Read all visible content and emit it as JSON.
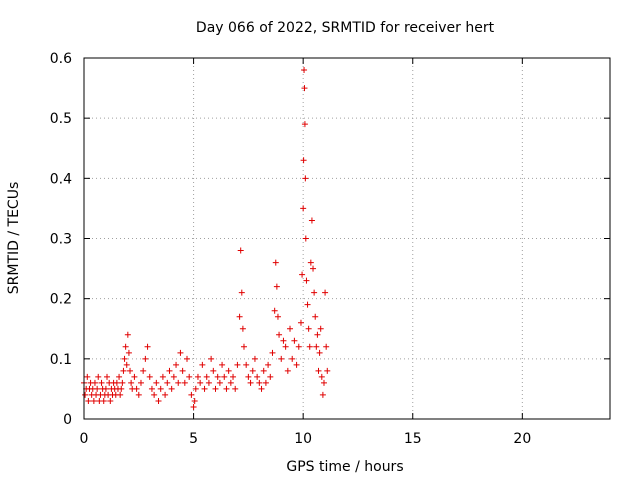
{
  "chart_data": {
    "type": "scatter",
    "title": "Day 066 of 2022, SRMTID for receiver hert",
    "xlabel": "GPS time / hours",
    "ylabel": "SRMTID / TECUs",
    "xlim": [
      0,
      24
    ],
    "ylim": [
      0,
      0.6
    ],
    "x_ticks": [
      0,
      5,
      10,
      15,
      20
    ],
    "y_ticks": [
      0,
      0.1,
      0.2,
      0.3,
      0.4,
      0.5,
      0.6
    ],
    "x_tick_labels": [
      "0",
      "5",
      "10",
      "15",
      "20"
    ],
    "y_tick_labels": [
      "0",
      "0.1",
      "0.2",
      "0.3",
      "0.4",
      "0.5",
      "0.6"
    ],
    "grid": true,
    "marker": "+",
    "marker_color": "#e00000",
    "series": [
      {
        "name": "SRMTID",
        "points": [
          [
            0.0,
            0.06
          ],
          [
            0.05,
            0.04
          ],
          [
            0.1,
            0.05
          ],
          [
            0.15,
            0.07
          ],
          [
            0.2,
            0.03
          ],
          [
            0.25,
            0.05
          ],
          [
            0.3,
            0.06
          ],
          [
            0.35,
            0.04
          ],
          [
            0.4,
            0.05
          ],
          [
            0.45,
            0.03
          ],
          [
            0.5,
            0.06
          ],
          [
            0.55,
            0.04
          ],
          [
            0.6,
            0.05
          ],
          [
            0.65,
            0.07
          ],
          [
            0.7,
            0.03
          ],
          [
            0.75,
            0.04
          ],
          [
            0.8,
            0.06
          ],
          [
            0.85,
            0.05
          ],
          [
            0.9,
            0.03
          ],
          [
            0.95,
            0.04
          ],
          [
            1.0,
            0.05
          ],
          [
            1.05,
            0.07
          ],
          [
            1.1,
            0.04
          ],
          [
            1.15,
            0.06
          ],
          [
            1.2,
            0.03
          ],
          [
            1.25,
            0.05
          ],
          [
            1.3,
            0.04
          ],
          [
            1.35,
            0.06
          ],
          [
            1.4,
            0.05
          ],
          [
            1.45,
            0.04
          ],
          [
            1.5,
            0.06
          ],
          [
            1.55,
            0.05
          ],
          [
            1.6,
            0.07
          ],
          [
            1.65,
            0.04
          ],
          [
            1.7,
            0.05
          ],
          [
            1.75,
            0.06
          ],
          [
            1.8,
            0.08
          ],
          [
            1.85,
            0.1
          ],
          [
            1.9,
            0.12
          ],
          [
            1.95,
            0.09
          ],
          [
            2.0,
            0.14
          ],
          [
            2.05,
            0.11
          ],
          [
            2.1,
            0.08
          ],
          [
            2.15,
            0.06
          ],
          [
            2.2,
            0.05
          ],
          [
            2.3,
            0.07
          ],
          [
            2.4,
            0.05
          ],
          [
            2.5,
            0.04
          ],
          [
            2.6,
            0.06
          ],
          [
            2.7,
            0.08
          ],
          [
            2.8,
            0.1
          ],
          [
            2.9,
            0.12
          ],
          [
            3.0,
            0.07
          ],
          [
            3.1,
            0.05
          ],
          [
            3.2,
            0.04
          ],
          [
            3.3,
            0.06
          ],
          [
            3.4,
            0.03
          ],
          [
            3.5,
            0.05
          ],
          [
            3.6,
            0.07
          ],
          [
            3.7,
            0.04
          ],
          [
            3.8,
            0.06
          ],
          [
            3.9,
            0.08
          ],
          [
            4.0,
            0.05
          ],
          [
            4.1,
            0.07
          ],
          [
            4.2,
            0.09
          ],
          [
            4.3,
            0.06
          ],
          [
            4.4,
            0.11
          ],
          [
            4.5,
            0.08
          ],
          [
            4.6,
            0.06
          ],
          [
            4.7,
            0.1
          ],
          [
            4.8,
            0.07
          ],
          [
            4.9,
            0.04
          ],
          [
            5.0,
            0.02
          ],
          [
            5.05,
            0.03
          ],
          [
            5.1,
            0.05
          ],
          [
            5.2,
            0.07
          ],
          [
            5.3,
            0.06
          ],
          [
            5.4,
            0.09
          ],
          [
            5.5,
            0.05
          ],
          [
            5.6,
            0.07
          ],
          [
            5.7,
            0.06
          ],
          [
            5.8,
            0.1
          ],
          [
            5.9,
            0.08
          ],
          [
            6.0,
            0.05
          ],
          [
            6.1,
            0.07
          ],
          [
            6.2,
            0.06
          ],
          [
            6.3,
            0.09
          ],
          [
            6.4,
            0.07
          ],
          [
            6.5,
            0.05
          ],
          [
            6.6,
            0.08
          ],
          [
            6.7,
            0.06
          ],
          [
            6.8,
            0.07
          ],
          [
            6.9,
            0.05
          ],
          [
            7.0,
            0.09
          ],
          [
            7.1,
            0.17
          ],
          [
            7.15,
            0.28
          ],
          [
            7.2,
            0.21
          ],
          [
            7.25,
            0.15
          ],
          [
            7.3,
            0.12
          ],
          [
            7.4,
            0.09
          ],
          [
            7.5,
            0.07
          ],
          [
            7.6,
            0.06
          ],
          [
            7.7,
            0.08
          ],
          [
            7.8,
            0.1
          ],
          [
            7.9,
            0.07
          ],
          [
            8.0,
            0.06
          ],
          [
            8.1,
            0.05
          ],
          [
            8.2,
            0.08
          ],
          [
            8.3,
            0.06
          ],
          [
            8.4,
            0.09
          ],
          [
            8.5,
            0.07
          ],
          [
            8.6,
            0.11
          ],
          [
            8.7,
            0.18
          ],
          [
            8.75,
            0.26
          ],
          [
            8.8,
            0.22
          ],
          [
            8.85,
            0.17
          ],
          [
            8.9,
            0.14
          ],
          [
            9.0,
            0.1
          ],
          [
            9.1,
            0.13
          ],
          [
            9.2,
            0.12
          ],
          [
            9.3,
            0.08
          ],
          [
            9.4,
            0.15
          ],
          [
            9.5,
            0.1
          ],
          [
            9.6,
            0.13
          ],
          [
            9.7,
            0.09
          ],
          [
            9.8,
            0.12
          ],
          [
            9.9,
            0.16
          ],
          [
            9.95,
            0.24
          ],
          [
            10.0,
            0.35
          ],
          [
            10.02,
            0.43
          ],
          [
            10.04,
            0.58
          ],
          [
            10.06,
            0.55
          ],
          [
            10.08,
            0.49
          ],
          [
            10.1,
            0.4
          ],
          [
            10.12,
            0.3
          ],
          [
            10.15,
            0.23
          ],
          [
            10.2,
            0.19
          ],
          [
            10.25,
            0.15
          ],
          [
            10.3,
            0.12
          ],
          [
            10.35,
            0.26
          ],
          [
            10.4,
            0.33
          ],
          [
            10.45,
            0.25
          ],
          [
            10.5,
            0.21
          ],
          [
            10.55,
            0.17
          ],
          [
            10.6,
            0.12
          ],
          [
            10.65,
            0.14
          ],
          [
            10.7,
            0.08
          ],
          [
            10.75,
            0.11
          ],
          [
            10.8,
            0.15
          ],
          [
            10.85,
            0.07
          ],
          [
            10.9,
            0.04
          ],
          [
            10.95,
            0.06
          ],
          [
            11.0,
            0.21
          ],
          [
            11.05,
            0.12
          ],
          [
            11.1,
            0.08
          ]
        ]
      }
    ]
  }
}
